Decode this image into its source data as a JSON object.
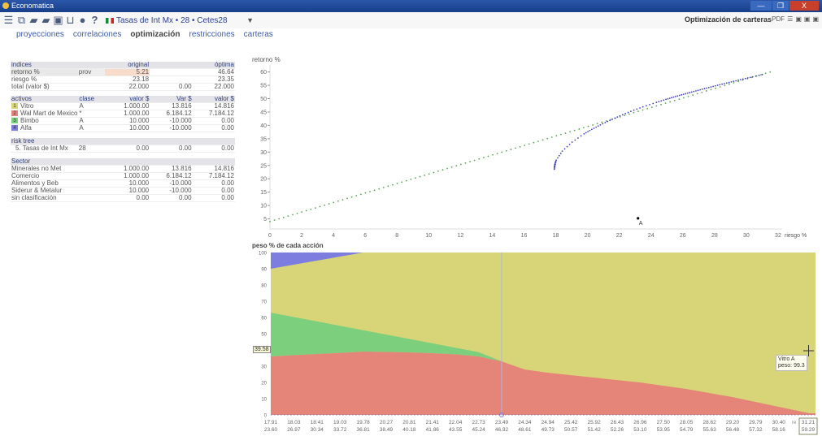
{
  "window": {
    "title": "Economatica",
    "buttons": [
      "—",
      "❐",
      "X"
    ]
  },
  "toolbar": {
    "selector_value": "Tasas de Int Mx • 28 • Cetes28",
    "app_title": "Optimización de carteras",
    "pdf_label": "PDF",
    "icons": [
      "menu-icon",
      "new-window-icon",
      "folder-open-icon",
      "folder-icon",
      "save-icon",
      "print-icon",
      "globe-icon",
      "help-icon"
    ]
  },
  "nav": [
    {
      "label": "proyecciones"
    },
    {
      "label": "correlaciones"
    },
    {
      "label": "optimización",
      "active": true
    },
    {
      "label": "restricciones"
    },
    {
      "label": "carteras"
    }
  ],
  "indices": {
    "headers": [
      "indices",
      "",
      "original",
      "",
      "óptima"
    ],
    "rows": [
      [
        "retorno %",
        "prov",
        "5.21",
        "",
        "46.64"
      ],
      [
        "riesgo %",
        "",
        "23.18",
        "",
        "23.35"
      ],
      [
        "total (valor $)",
        "",
        "22.000",
        "0.00",
        "22.000"
      ]
    ]
  },
  "activos": {
    "headers": [
      "activos",
      "clase",
      "valor $",
      "Var $",
      "valor $"
    ],
    "rows": [
      {
        "n": "1",
        "name": "Vitro",
        "clase": "A",
        "valor": "1.000.00",
        "var": "13.816",
        "opt": "14.816",
        "color": "#d8d478"
      },
      {
        "n": "2",
        "name": "Wal Mart de Mexico",
        "clase": "*",
        "valor": "1.000.00",
        "var": "6.184.12",
        "opt": "7.184.12",
        "color": "#e5857a"
      },
      {
        "n": "3",
        "name": "Bimbo",
        "clase": "A",
        "valor": "10.000",
        "var": "-10.000",
        "opt": "0.00",
        "color": "#7ccf7c"
      },
      {
        "n": "4",
        "name": "Alfa",
        "clase": "A",
        "valor": "10.000",
        "var": "-10.000",
        "opt": "0.00",
        "color": "#7d7ddf"
      }
    ]
  },
  "risk_tree": {
    "header": "risk tree",
    "rows": [
      [
        "5. Tasas de Int Mx",
        "28",
        "0.00",
        "0.00",
        "0.00"
      ]
    ]
  },
  "sector": {
    "header": "Sector",
    "rows": [
      [
        "Minerales no Met",
        "",
        "1.000.00",
        "13.816",
        "14.816"
      ],
      [
        "Comercio",
        "",
        "1.000.00",
        "6.184.12",
        "7.184.12"
      ],
      [
        "Alimentos y Beb",
        "",
        "10.000",
        "-10.000",
        "0.00"
      ],
      [
        "Siderur & Metalur",
        "",
        "10.000",
        "-10.000",
        "0.00"
      ],
      [
        "sin clasificación",
        "",
        "0.00",
        "0.00",
        "0.00"
      ]
    ]
  },
  "chart_data": [
    {
      "type": "scatter",
      "ylabel": "retorno %",
      "xlabel": "riesgo %",
      "xlim": [
        0,
        33
      ],
      "ylim": [
        0,
        62
      ],
      "xticks": [
        0,
        2,
        4,
        6,
        8,
        10,
        12,
        14,
        16,
        18,
        20,
        22,
        24,
        26,
        28,
        30,
        32
      ],
      "yticks": [
        5,
        10,
        15,
        20,
        25,
        30,
        35,
        40,
        45,
        50,
        55,
        60
      ],
      "capital_market_line": [
        [
          0,
          4
        ],
        [
          31.5,
          60
        ]
      ],
      "cml_color": "#5aa05a",
      "frontier_color": "#4040c0",
      "frontier": {
        "riesgo": [
          17.91,
          18.03,
          18.41,
          19.03,
          19.78,
          20.27,
          20.81,
          21.41,
          22.04,
          22.73,
          23.49,
          24.34,
          24.94,
          25.42,
          25.92,
          26.43,
          26.96,
          27.5,
          28.05,
          28.62,
          29.2,
          29.79,
          30.4,
          31.21
        ],
        "retorno": [
          23.6,
          26.97,
          30.34,
          33.72,
          36.81,
          38.49,
          40.18,
          41.86,
          43.55,
          45.24,
          46.92,
          48.61,
          49.73,
          50.57,
          51.42,
          52.26,
          53.1,
          53.95,
          54.79,
          55.63,
          56.48,
          57.32,
          58.16,
          59.29
        ]
      },
      "point": {
        "label": "A",
        "riesgo": 23.18,
        "retorno": 5.21
      }
    },
    {
      "type": "area",
      "title": "peso % de cada acción",
      "ylim": [
        0,
        100
      ],
      "yticks": [
        0,
        10,
        20,
        30,
        40,
        50,
        60,
        70,
        80,
        90,
        100
      ],
      "categories_riesgo": [
        "17.91",
        "18.03",
        "18.41",
        "19.03",
        "19.78",
        "20.27",
        "20.81",
        "21.41",
        "22.04",
        "22.73",
        "23.49",
        "24.34",
        "24.94",
        "25.42",
        "25.92",
        "26.43",
        "26.96",
        "27.50",
        "28.05",
        "28.62",
        "29.20",
        "29.79",
        "30.40",
        "31.21"
      ],
      "categories_retorno": [
        "23.60",
        "26.97",
        "30.34",
        "33.72",
        "36.81",
        "38.49",
        "40.18",
        "41.86",
        "43.55",
        "45.24",
        "46.92",
        "48.61",
        "49.73",
        "50.57",
        "51.42",
        "52.26",
        "53.10",
        "53.95",
        "54.79",
        "55.63",
        "56.48",
        "57.32",
        "58.16",
        "59.29"
      ],
      "last_prefix": "re",
      "series": [
        {
          "name": "Wal Mart de Mexico",
          "color": "#e5857a",
          "values": [
            36,
            36.8,
            37.5,
            38.2,
            39,
            38.8,
            38.5,
            38,
            37.3,
            36,
            33,
            28,
            26,
            24.5,
            23,
            21.5,
            20,
            18,
            16,
            13.5,
            11,
            8,
            5,
            1
          ]
        },
        {
          "name": "Bimbo",
          "color": "#7ccf7c",
          "values": [
            27,
            23.5,
            20.1,
            16.7,
            13.2,
            10.7,
            8.3,
            6.1,
            4.1,
            2.7,
            0,
            0,
            0,
            0,
            0,
            0,
            0,
            0,
            0,
            0,
            0,
            0,
            0,
            0
          ]
        },
        {
          "name": "Vitro",
          "color": "#d8d478",
          "values": [
            27,
            32.2,
            37.4,
            42.6,
            47.8,
            50.5,
            53.2,
            55.9,
            58.6,
            61.3,
            67,
            72,
            74,
            75.5,
            77,
            78.5,
            80,
            82,
            84,
            86.5,
            89,
            92,
            95,
            99
          ]
        },
        {
          "name": "Alfa",
          "color": "#7d7ddf",
          "values": [
            10,
            7.5,
            5,
            2.5,
            0,
            0,
            0,
            0,
            0,
            0,
            0,
            0,
            0,
            0,
            0,
            0,
            0,
            0,
            0,
            0,
            0,
            0,
            0,
            0
          ]
        }
      ],
      "cursor_index": 10,
      "cursor_y_value": "39.58",
      "tooltip": {
        "line1": "Vitro A",
        "line2": "peso: 99.3"
      }
    }
  ]
}
